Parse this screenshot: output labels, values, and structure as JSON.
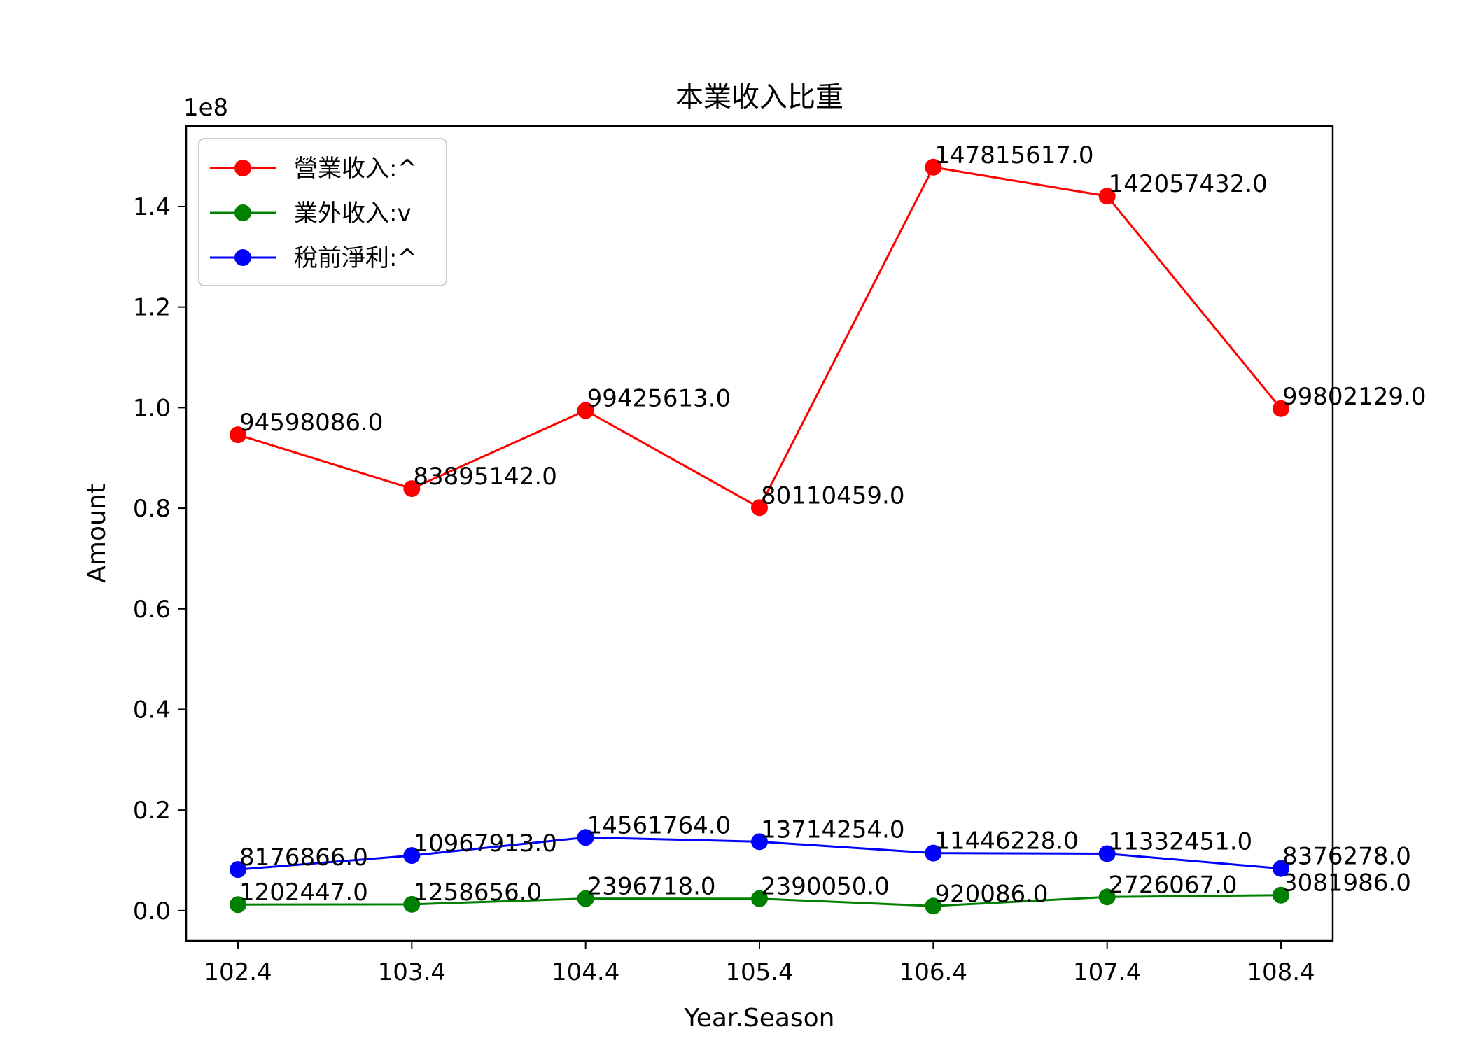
{
  "chart_data": {
    "type": "line",
    "title": "本業收入比重",
    "xlabel": "Year.Season",
    "ylabel": "Amount",
    "y_offset_text": "1e8",
    "categories": [
      "102.4",
      "103.4",
      "104.4",
      "105.4",
      "106.4",
      "107.4",
      "108.4"
    ],
    "ylim": [
      -6000000,
      156000000
    ],
    "yticks": [
      0,
      20000000,
      40000000,
      60000000,
      80000000,
      100000000,
      120000000,
      140000000
    ],
    "ytick_labels": [
      "0.0",
      "0.2",
      "0.4",
      "0.6",
      "0.8",
      "1.0",
      "1.2",
      "1.4"
    ],
    "grid": false,
    "legend_position": "top-left",
    "series": [
      {
        "name": "營業收入:^",
        "color": "#ff0000",
        "values": [
          94598086.0,
          83895142.0,
          99425613.0,
          80110459.0,
          147815617.0,
          142057432.0,
          99802129.0
        ],
        "labels": [
          "94598086.0",
          "83895142.0",
          "99425613.0",
          "80110459.0",
          "147815617.0",
          "142057432.0",
          "99802129.0"
        ]
      },
      {
        "name": "業外收入:v",
        "color": "#008000",
        "values": [
          1202447.0,
          1258656.0,
          2396718.0,
          2390050.0,
          920086.0,
          2726067.0,
          3081986.0
        ],
        "labels": [
          "1202447.0",
          "1258656.0",
          "2396718.0",
          "2390050.0",
          "920086.0",
          "2726067.0",
          "3081986.0"
        ]
      },
      {
        "name": "稅前淨利:^",
        "color": "#0000ff",
        "values": [
          8176866.0,
          10967913.0,
          14561764.0,
          13714254.0,
          11446228.0,
          11332451.0,
          8376278.0
        ],
        "labels": [
          "8176866.0",
          "10967913.0",
          "14561764.0",
          "13714254.0",
          "11446228.0",
          "11332451.0",
          "8376278.0"
        ]
      }
    ]
  }
}
